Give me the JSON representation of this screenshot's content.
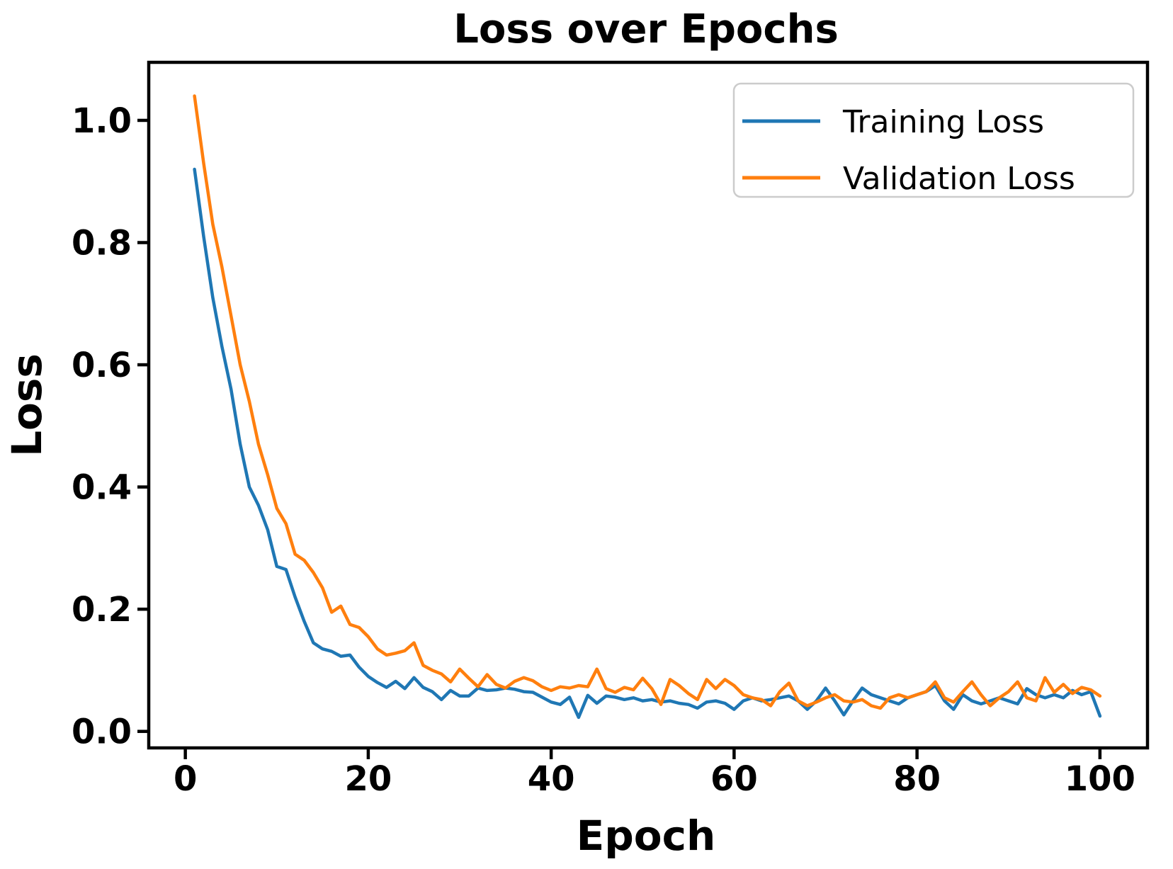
{
  "figure": {
    "title": "Loss over Epochs",
    "xlabel": "Epoch",
    "ylabel": "Loss"
  },
  "legend": {
    "position": "upper right",
    "entries": [
      {
        "label": "Training Loss",
        "color": "#1f77b4"
      },
      {
        "label": "Validation Loss",
        "color": "#ff7f0e"
      }
    ]
  },
  "chart_data": {
    "type": "line",
    "title": "Loss over Epochs",
    "xlabel": "Epoch",
    "ylabel": "Loss",
    "grid": false,
    "legend_position": "upper right",
    "x_start": 1,
    "x_step": 1,
    "n_points": 100,
    "xlim": [
      -4.0,
      105.2
    ],
    "ylim": [
      -0.027,
      1.095
    ],
    "x_ticks": [
      0,
      20,
      40,
      60,
      80,
      100
    ],
    "x_tick_labels": [
      "0",
      "20",
      "40",
      "60",
      "80",
      "100"
    ],
    "y_ticks": [
      0.0,
      0.2,
      0.4,
      0.6,
      0.8,
      1.0
    ],
    "y_tick_labels": [
      "0.0",
      "0.2",
      "0.4",
      "0.6",
      "0.8",
      "1.0"
    ],
    "axis_color": "#000000",
    "background_color": "#ffffff",
    "series": [
      {
        "name": "Training Loss",
        "color": "#1f77b4",
        "values": [
          0.92,
          0.81,
          0.71,
          0.63,
          0.56,
          0.47,
          0.4,
          0.37,
          0.33,
          0.27,
          0.265,
          0.22,
          0.18,
          0.145,
          0.135,
          0.131,
          0.123,
          0.125,
          0.105,
          0.09,
          0.08,
          0.072,
          0.082,
          0.07,
          0.088,
          0.072,
          0.065,
          0.052,
          0.067,
          0.058,
          0.058,
          0.071,
          0.067,
          0.068,
          0.071,
          0.069,
          0.065,
          0.064,
          0.056,
          0.048,
          0.044,
          0.056,
          0.023,
          0.059,
          0.046,
          0.058,
          0.056,
          0.052,
          0.055,
          0.05,
          0.052,
          0.048,
          0.05,
          0.046,
          0.044,
          0.038,
          0.048,
          0.05,
          0.046,
          0.036,
          0.05,
          0.055,
          0.05,
          0.052,
          0.055,
          0.058,
          0.05,
          0.036,
          0.05,
          0.071,
          0.05,
          0.027,
          0.05,
          0.071,
          0.06,
          0.055,
          0.05,
          0.045,
          0.055,
          0.06,
          0.065,
          0.075,
          0.05,
          0.036,
          0.06,
          0.05,
          0.045,
          0.05,
          0.055,
          0.05,
          0.045,
          0.07,
          0.06,
          0.055,
          0.06,
          0.055,
          0.067,
          0.06,
          0.065,
          0.025
        ]
      },
      {
        "name": "Validation Loss",
        "color": "#ff7f0e",
        "values": [
          1.04,
          0.93,
          0.83,
          0.76,
          0.68,
          0.6,
          0.54,
          0.47,
          0.42,
          0.365,
          0.34,
          0.29,
          0.28,
          0.26,
          0.235,
          0.195,
          0.205,
          0.175,
          0.17,
          0.155,
          0.135,
          0.125,
          0.128,
          0.132,
          0.145,
          0.108,
          0.1,
          0.094,
          0.081,
          0.102,
          0.087,
          0.073,
          0.093,
          0.077,
          0.071,
          0.082,
          0.088,
          0.083,
          0.073,
          0.067,
          0.073,
          0.071,
          0.075,
          0.073,
          0.102,
          0.07,
          0.064,
          0.072,
          0.068,
          0.087,
          0.07,
          0.044,
          0.085,
          0.075,
          0.062,
          0.052,
          0.085,
          0.07,
          0.085,
          0.075,
          0.06,
          0.055,
          0.052,
          0.042,
          0.065,
          0.079,
          0.05,
          0.042,
          0.048,
          0.055,
          0.06,
          0.05,
          0.048,
          0.052,
          0.042,
          0.038,
          0.055,
          0.06,
          0.055,
          0.06,
          0.065,
          0.081,
          0.055,
          0.048,
          0.065,
          0.081,
          0.06,
          0.042,
          0.055,
          0.065,
          0.081,
          0.055,
          0.05,
          0.088,
          0.064,
          0.077,
          0.062,
          0.072,
          0.068,
          0.058
        ]
      }
    ]
  }
}
